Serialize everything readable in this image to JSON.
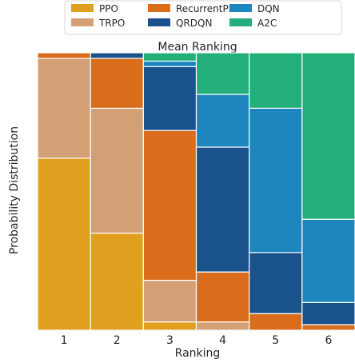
{
  "chart_data": {
    "type": "bar",
    "stacked": true,
    "title": "Mean Ranking",
    "xlabel": "Ranking",
    "ylabel": "Probability Distribution",
    "categories": [
      "1",
      "2",
      "3",
      "4",
      "5",
      "6"
    ],
    "ylim": [
      0,
      1
    ],
    "legend_position": "top-center",
    "grid": false,
    "series": [
      {
        "name": "PPO",
        "color": "#E09F1F",
        "values": [
          0.62,
          0.35,
          0.03,
          0.0,
          0.0,
          0.0
        ]
      },
      {
        "name": "TRPO",
        "color": "#D2A074",
        "values": [
          0.36,
          0.45,
          0.15,
          0.03,
          0.0,
          0.0
        ]
      },
      {
        "name": "RecurrentPPO",
        "color": "#D96D1B",
        "values": [
          0.02,
          0.18,
          0.54,
          0.18,
          0.06,
          0.02
        ]
      },
      {
        "name": "QRDQN",
        "color": "#1A538B",
        "values": [
          0.0,
          0.02,
          0.23,
          0.45,
          0.22,
          0.08
        ]
      },
      {
        "name": "DQN",
        "color": "#1D86BF",
        "values": [
          0.0,
          0.0,
          0.02,
          0.19,
          0.52,
          0.3
        ]
      },
      {
        "name": "A2C",
        "color": "#22AF79",
        "values": [
          0.0,
          0.0,
          0.03,
          0.15,
          0.2,
          0.6
        ]
      }
    ]
  }
}
